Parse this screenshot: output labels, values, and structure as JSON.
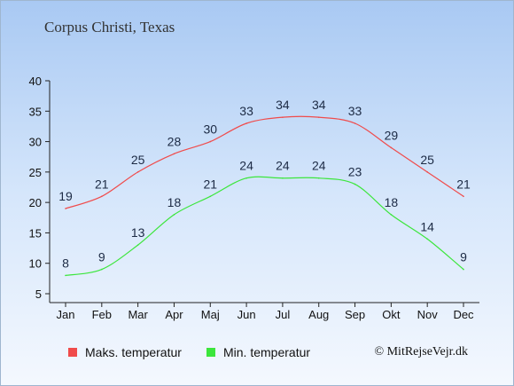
{
  "chart_data": {
    "type": "line",
    "title": "Corpus Christi, Texas",
    "categories": [
      "Jan",
      "Feb",
      "Mar",
      "Apr",
      "Maj",
      "Jun",
      "Jul",
      "Aug",
      "Sep",
      "Okt",
      "Nov",
      "Dec"
    ],
    "series": [
      {
        "name": "Maks. temperatur",
        "color": "#f04b4b",
        "values": [
          19,
          21,
          25,
          28,
          30,
          33,
          34,
          34,
          33,
          29,
          25,
          21
        ]
      },
      {
        "name": "Min. temperatur",
        "color": "#3ce63c",
        "values": [
          8,
          9,
          13,
          18,
          21,
          24,
          24,
          24,
          23,
          18,
          14,
          9
        ]
      }
    ],
    "ylim": [
      5,
      40
    ],
    "yticks": [
      5,
      10,
      15,
      20,
      25,
      30,
      35,
      40
    ],
    "grid": false,
    "legend_position": "bottom"
  },
  "copyright": "© MitRejseVejr.dk"
}
